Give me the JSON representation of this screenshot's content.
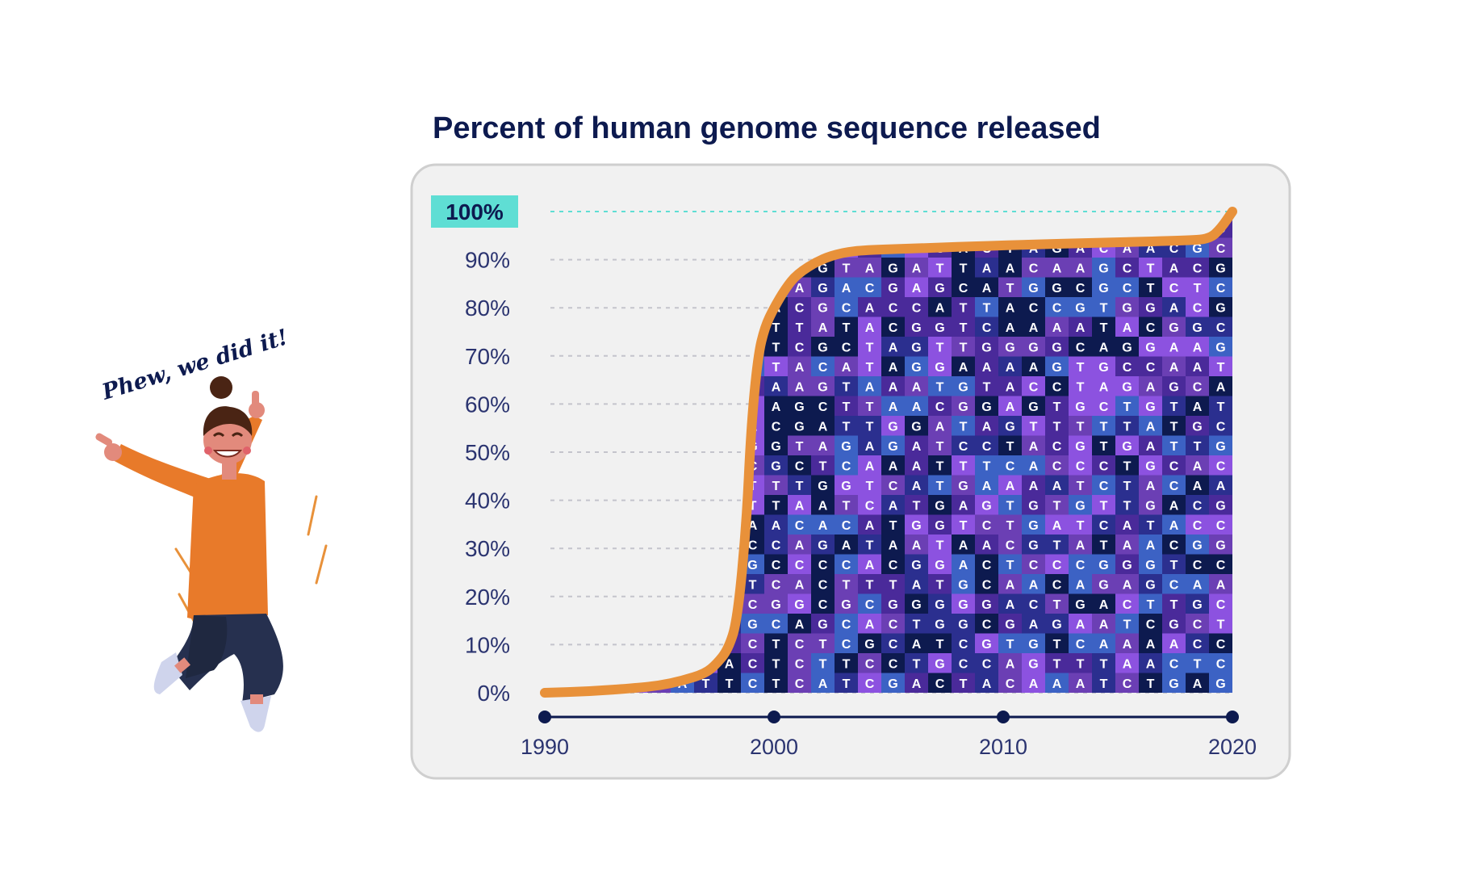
{
  "chart_data": {
    "type": "area",
    "title": "Percent of human genome sequence released",
    "xlabel": "",
    "ylabel": "",
    "xlim": [
      1990,
      2020
    ],
    "ylim": [
      0,
      100
    ],
    "x_ticks": [
      1990,
      2000,
      2010,
      2020
    ],
    "y_ticks": [
      "0%",
      "10%",
      "20%",
      "30%",
      "40%",
      "50%",
      "60%",
      "70%",
      "80%",
      "90%",
      "100%"
    ],
    "highlight_label": "100%",
    "grid": "horizontal-dashed",
    "series": [
      {
        "x": [
          1990,
          1992,
          1994,
          1995,
          1996,
          1997,
          1997.5,
          1998,
          1998.4,
          1998.8,
          1999,
          1999.3,
          1999.6,
          2000,
          2000.5,
          2001,
          2002,
          2003,
          2004,
          2006,
          2010,
          2015,
          2018,
          2019,
          2019.5,
          2020
        ],
        "y": [
          0,
          0.3,
          1,
          1.5,
          2.5,
          4,
          6,
          9,
          15,
          35,
          55,
          70,
          76,
          80,
          84,
          87,
          90,
          91.5,
          92,
          92.3,
          93,
          93.6,
          94,
          94.3,
          96.5,
          100
        ]
      }
    ],
    "fill_letters": [
      "A",
      "C",
      "G",
      "T"
    ]
  },
  "annotation": {
    "speech": "Phew, we did it!"
  },
  "colors": {
    "title": "#0d1a4f",
    "line": "#e8913a",
    "highlight": "#5fded4",
    "tile_colors": [
      "#0d1a4f",
      "#2b2f8f",
      "#3c62c4",
      "#6b3fb4",
      "#8c52e0",
      "#4a2a9a"
    ],
    "panel_bg": "#f1f1f1",
    "panel_border": "#cfcfcf"
  }
}
